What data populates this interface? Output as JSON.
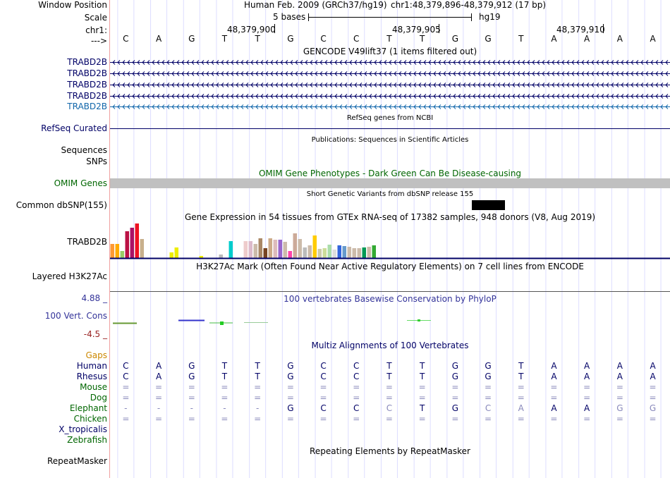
{
  "header": {
    "window_position_label": "Window Position",
    "scale_label": "Scale",
    "chrom_label": "chr1:",
    "strand_label": "--->",
    "assembly": "Human Feb. 2009 (GRCh37/hg19)",
    "position": "chr1:48,379,896-48,379,912 (17 bp)",
    "scale_text": "5 bases",
    "scale_db": "hg19",
    "ticks": [
      "48,379,900",
      "48,379,905",
      "48,379,910"
    ]
  },
  "sequence": [
    "C",
    "A",
    "G",
    "T",
    "T",
    "G",
    "C",
    "C",
    "T",
    "T",
    "G",
    "G",
    "T",
    "A",
    "A",
    "A",
    "A"
  ],
  "gencode": {
    "title": "GENCODE V49lift37 (1 items filtered out)",
    "transcripts": [
      "TRABD2B",
      "TRABD2B",
      "TRABD2B",
      "TRABD2B",
      "TRABD2B"
    ]
  },
  "refseq": {
    "title": "RefSeq genes from NCBI",
    "label": "RefSeq Curated"
  },
  "publications": {
    "title": "Publications: Sequences in Scientific Articles",
    "label_sequences": "Sequences",
    "label_snps": "SNPs"
  },
  "omim": {
    "title": "OMIM Gene Phenotypes - Dark Green Can Be Disease-causing",
    "label": "OMIM Genes"
  },
  "dbsnp": {
    "title": "Short Genetic Variants from dbSNP release 155",
    "label": "Common dbSNP(155)"
  },
  "gtex": {
    "title": "Gene Expression in 54 tissues from GTEx RNA-seq of 17382 samples, 948 donors (V8, Aug 2019)",
    "label": "TRABD2B",
    "bars": [
      {
        "v": 20,
        "c": "#ff9933"
      },
      {
        "v": 20,
        "c": "#ffaa00"
      },
      {
        "v": 10,
        "c": "#99cc66"
      },
      {
        "v": 38,
        "c": "#bb1144"
      },
      {
        "v": 43,
        "c": "#aa1166"
      },
      {
        "v": 49,
        "c": "#ee1122"
      },
      {
        "v": 27,
        "c": "#c8b08c"
      },
      {
        "v": 0,
        "c": "#eeee00"
      },
      {
        "v": 0,
        "c": "#eeee00"
      },
      {
        "v": 0,
        "c": "#eeee00"
      },
      {
        "v": 0,
        "c": "#eeee00"
      },
      {
        "v": 0,
        "c": "#eeee00"
      },
      {
        "v": 8,
        "c": "#eeee00"
      },
      {
        "v": 15,
        "c": "#eeee00"
      },
      {
        "v": 0,
        "c": "#eeee00"
      },
      {
        "v": 0,
        "c": "#eeee00"
      },
      {
        "v": 0,
        "c": "#eeee00"
      },
      {
        "v": 0,
        "c": "#eeee00"
      },
      {
        "v": 3,
        "c": "#eeee00"
      },
      {
        "v": 0,
        "c": "#dddddd"
      },
      {
        "v": 0,
        "c": "#dddddd"
      },
      {
        "v": 0,
        "c": "#dddddd"
      },
      {
        "v": 5,
        "c": "#bbbbbb"
      },
      {
        "v": 0,
        "c": "#bbbbbb"
      },
      {
        "v": 24,
        "c": "#00cccc"
      },
      {
        "v": 0,
        "c": "#dddddd"
      },
      {
        "v": 0,
        "c": "#dddddd"
      },
      {
        "v": 24,
        "c": "#eecccc"
      },
      {
        "v": 24,
        "c": "#ddbbcc"
      },
      {
        "v": 20,
        "c": "#ccbbaa"
      },
      {
        "v": 28,
        "c": "#aa8866"
      },
      {
        "v": 14,
        "c": "#774422"
      },
      {
        "v": 28,
        "c": "#ccaa88"
      },
      {
        "v": 26,
        "c": "#ddbbbb"
      },
      {
        "v": 26,
        "c": "#9966cc"
      },
      {
        "v": 23,
        "c": "#ccbbaa"
      },
      {
        "v": 10,
        "c": "#ff44aa"
      },
      {
        "v": 35,
        "c": "#ccaa99"
      },
      {
        "v": 27,
        "c": "#ccbbaa"
      },
      {
        "v": 15,
        "c": "#bbbbbb"
      },
      {
        "v": 18,
        "c": "#ccbbaa"
      },
      {
        "v": 32,
        "c": "#ffcc00"
      },
      {
        "v": 13,
        "c": "#ccccaa"
      },
      {
        "v": 14,
        "c": "#ccdd99"
      },
      {
        "v": 19,
        "c": "#aaddaa"
      },
      {
        "v": 12,
        "c": "#dddddd"
      },
      {
        "v": 18,
        "c": "#3366dd"
      },
      {
        "v": 17,
        "c": "#6699cc"
      },
      {
        "v": 16,
        "c": "#ccbbaa"
      },
      {
        "v": 14,
        "c": "#ccbbaa"
      },
      {
        "v": 14,
        "c": "#ccbbaa"
      },
      {
        "v": 15,
        "c": "#009955"
      },
      {
        "v": 16,
        "c": "#ccbbaa"
      },
      {
        "v": 18,
        "c": "#33aa33"
      }
    ]
  },
  "h3k27ac": {
    "title": "H3K27Ac Mark (Often Found Near Active Regulatory Elements) on 7 cell lines from ENCODE",
    "label": "Layered H3K27Ac"
  },
  "phylop": {
    "title": "100 vertebrates Basewise Conservation by PhyloP",
    "label": "100 Vert. Cons",
    "max": "4.88 _",
    "min": "-4.5 _"
  },
  "multiz": {
    "title": "Multiz Alignments of 100 Vertebrates",
    "gaps_label": "Gaps",
    "species": [
      {
        "name": "Human",
        "color": "#000066",
        "cells": [
          "C",
          "A",
          "G",
          "T",
          "T",
          "G",
          "C",
          "C",
          "T",
          "T",
          "G",
          "G",
          "T",
          "A",
          "A",
          "A",
          "A"
        ],
        "shade": [
          0,
          0,
          0,
          0,
          0,
          0,
          0,
          0,
          0,
          0,
          0,
          0,
          0,
          0,
          0,
          0,
          0
        ]
      },
      {
        "name": "Rhesus",
        "color": "#000066",
        "cells": [
          "C",
          "A",
          "G",
          "T",
          "T",
          "G",
          "C",
          "C",
          "T",
          "T",
          "G",
          "G",
          "T",
          "A",
          "A",
          "A",
          "A"
        ],
        "shade": [
          0,
          0,
          0,
          0,
          0,
          0,
          0,
          0,
          0,
          0,
          0,
          0,
          0,
          0,
          0,
          0,
          0
        ]
      },
      {
        "name": "Mouse",
        "color": "#006600",
        "cells": [
          "=",
          "=",
          "=",
          "=",
          "=",
          "=",
          "=",
          "=",
          "=",
          "=",
          "=",
          "=",
          "=",
          "=",
          "=",
          "=",
          "="
        ],
        "shade": [
          1,
          1,
          1,
          1,
          1,
          1,
          1,
          1,
          1,
          1,
          1,
          1,
          1,
          1,
          1,
          1,
          1
        ]
      },
      {
        "name": "Dog",
        "color": "#006600",
        "cells": [
          "=",
          "=",
          "=",
          "=",
          "=",
          "=",
          "=",
          "=",
          "=",
          "=",
          "=",
          "=",
          "=",
          "=",
          "=",
          "=",
          "="
        ],
        "shade": [
          1,
          1,
          1,
          1,
          1,
          1,
          1,
          1,
          1,
          1,
          1,
          1,
          1,
          1,
          1,
          1,
          1
        ]
      },
      {
        "name": "Elephant",
        "color": "#006600",
        "cells": [
          "-",
          "-",
          "-",
          "-",
          "-",
          "G",
          "C",
          "C",
          "C",
          "T",
          "G",
          "C",
          "A",
          "A",
          "A",
          "G",
          "G"
        ],
        "shade": [
          1,
          1,
          1,
          1,
          1,
          0,
          0,
          0,
          1,
          0,
          0,
          1,
          1,
          0,
          0,
          1,
          1
        ]
      },
      {
        "name": "Chicken",
        "color": "#006600",
        "cells": [
          "=",
          "=",
          "=",
          "=",
          "=",
          "=",
          "=",
          "=",
          "=",
          "=",
          "=",
          "=",
          "=",
          "=",
          "=",
          "=",
          "="
        ],
        "shade": [
          1,
          1,
          1,
          1,
          1,
          1,
          1,
          1,
          1,
          1,
          1,
          1,
          1,
          1,
          1,
          1,
          1
        ]
      },
      {
        "name": "X_tropicalis",
        "color": "#000066",
        "cells": [],
        "shade": []
      },
      {
        "name": "Zebrafish",
        "color": "#006600",
        "cells": [],
        "shade": []
      }
    ]
  },
  "repeatmasker": {
    "title": "Repeating Elements by RepeatMasker",
    "label": "RepeatMasker"
  },
  "colors": {
    "navy": "#000066",
    "green": "#006600",
    "gencode_last": "#1166aa",
    "gap_orange": "#cc8800",
    "phylop_blue": "#333399",
    "phylop_red": "#992222",
    "grid": "#ddddff"
  }
}
